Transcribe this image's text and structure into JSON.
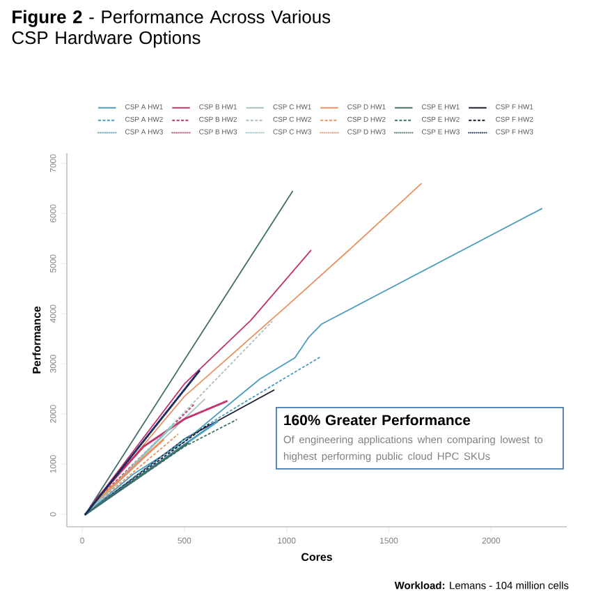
{
  "chart_data": {
    "type": "line",
    "title": "**Figure 2** - Performance Across Various CSP Hardware Options",
    "xlabel": "Cores",
    "ylabel": "Performance",
    "xlim": [
      -75,
      2370
    ],
    "ylim": [
      -250,
      7200
    ],
    "xticks": [
      0,
      500,
      1000,
      1500,
      2000
    ],
    "yticks": [
      0,
      1000,
      2000,
      3000,
      4000,
      5000,
      6000,
      7000
    ],
    "legend": "top",
    "grid": false,
    "annotations": [
      "160% Greater Performance",
      "Of engineering applications when comparing lowest to highest performing public cloud HPC SKUs",
      "**Workload:** Lemans - 104 million cells"
    ],
    "series": [
      {
        "name": "CSP A HW1",
        "color": "#4a9bbd",
        "line_style": "solid",
        "x": [
          16,
          250,
          500,
          720,
          870,
          1040,
          1110,
          1170,
          2250
        ],
        "values": [
          0,
          800,
          1450,
          2200,
          2700,
          3120,
          3540,
          3790,
          6100
        ]
      },
      {
        "name": "CSP B HW1",
        "color": "#c0336b",
        "line_style": "solid",
        "x": [
          16,
          500,
          825,
          1120
        ],
        "values": [
          0,
          2600,
          3870,
          5270
        ]
      },
      {
        "name": "CSP C HW1",
        "color": "#a9bfc0",
        "line_style": "solid",
        "x": [
          16,
          600
        ],
        "values": [
          0,
          2300
        ]
      },
      {
        "name": "CSP D HW1",
        "color": "#e8905f",
        "line_style": "solid",
        "x": [
          16,
          500,
          1000,
          1300,
          1660
        ],
        "values": [
          0,
          2350,
          4150,
          5250,
          6600
        ]
      },
      {
        "name": "CSP E HW1",
        "color": "#3d6e66",
        "line_style": "solid",
        "x": [
          16,
          1030
        ],
        "values": [
          0,
          6450
        ]
      },
      {
        "name": "CSP F HW1",
        "color": "#1a1a2e",
        "line_style": "solid",
        "x": [
          16,
          500,
          940
        ],
        "values": [
          0,
          1500,
          2480
        ]
      },
      {
        "name": "CSP A HW2",
        "color": "#4a9bbd",
        "line_style": "dashed",
        "x": [
          16,
          500,
          800,
          1170
        ],
        "values": [
          0,
          1500,
          2250,
          3150
        ]
      },
      {
        "name": "CSP B HW2",
        "color": "#c0336b",
        "line_style": "dashed",
        "x": [
          40,
          550
        ],
        "values": [
          160,
          2200
        ]
      },
      {
        "name": "CSP C HW2",
        "color": "#a9bfc0",
        "line_style": "dashed",
        "x": [
          16,
          930
        ],
        "values": [
          0,
          3850
        ]
      },
      {
        "name": "CSP D HW2",
        "color": "#e8905f",
        "line_style": "dashed",
        "x": [
          100,
          470
        ],
        "values": [
          320,
          1600
        ]
      },
      {
        "name": "CSP E HW2",
        "color": "#3d6e66",
        "line_style": "dashed",
        "x": [
          16,
          500,
          757
        ],
        "values": [
          0,
          1350,
          1890
        ]
      },
      {
        "name": "CSP F HW2",
        "color": "#1a1a2e",
        "line_style": "dashed",
        "x": [
          16,
          620
        ],
        "values": [
          0,
          1800
        ]
      },
      {
        "name": "CSP A HW3",
        "color": "#4a9bbd",
        "line_style": "dotted",
        "x": [
          16,
          668
        ],
        "values": [
          0,
          1870
        ]
      },
      {
        "name": "CSP B HW3",
        "color": "#c0336b",
        "line_style": "dotted",
        "x": [
          64,
          300,
          500,
          710
        ],
        "values": [
          280,
          1350,
          1900,
          2260
        ]
      },
      {
        "name": "CSP C HW3",
        "color": "#8fc3c4",
        "line_style": "dotted",
        "x": [
          16,
          450
        ],
        "values": [
          0,
          1800
        ]
      },
      {
        "name": "CSP D HW3",
        "color": "#e8905f",
        "line_style": "dotted",
        "x": [
          64,
          400
        ],
        "values": [
          250,
          1500
        ]
      },
      {
        "name": "CSP E HW3",
        "color": "#3d6e66",
        "line_style": "dotted",
        "x": [
          16,
          518
        ],
        "values": [
          0,
          1420
        ]
      },
      {
        "name": "CSP F HW3",
        "color": "#1d2a5e",
        "line_style": "dotted",
        "x": [
          16,
          575
        ],
        "values": [
          0,
          2870
        ]
      }
    ]
  }
}
